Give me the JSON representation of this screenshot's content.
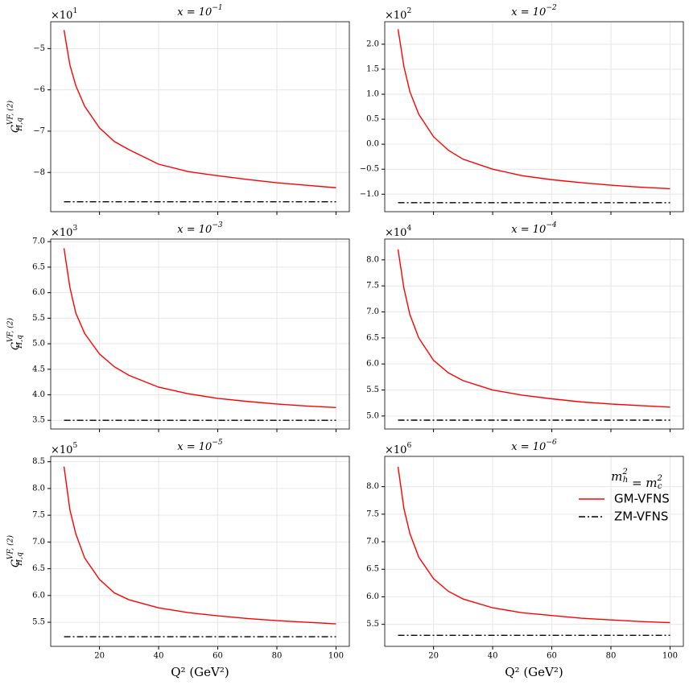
{
  "chart_data": [
    {
      "type": "line",
      "title": {
        "base": "x = 10",
        "exp": "−1"
      },
      "offset": {
        "base": "×10",
        "exp": "1"
      },
      "ylabel": {
        "base": "C",
        "sub": "H,q",
        "sup": "VF, (2)"
      },
      "x": [
        8,
        10,
        12,
        15,
        20,
        25,
        30,
        40,
        50,
        60,
        70,
        80,
        90,
        100
      ],
      "series": [
        {
          "color": "#ff0000",
          "style": "solid",
          "values": [
            -4.55,
            -5.4,
            -5.9,
            -6.4,
            -6.92,
            -7.25,
            -7.45,
            -7.8,
            -7.98,
            -8.08,
            -8.17,
            -8.25,
            -8.31,
            -8.37
          ]
        },
        {
          "color": "#000000",
          "style": "dashdot",
          "values": [
            -8.71,
            -8.71,
            -8.71,
            -8.71,
            -8.71,
            -8.71,
            -8.71,
            -8.71,
            -8.71,
            -8.71,
            -8.71,
            -8.71,
            -8.71,
            -8.71
          ]
        }
      ],
      "xlim": [
        3.5,
        104.5
      ],
      "xticks": [
        20,
        40,
        60,
        80,
        100
      ],
      "ylim": [
        -8.95,
        -4.35
      ],
      "yticks": [
        {
          "value": -8,
          "label": "−8"
        },
        {
          "value": -7,
          "label": "−7"
        },
        {
          "value": -6,
          "label": "−6"
        },
        {
          "value": -5,
          "label": "−5"
        }
      ],
      "grid": true
    },
    {
      "type": "line",
      "title": {
        "base": "x = 10",
        "exp": "−2"
      },
      "offset": {
        "base": "×10",
        "exp": "2"
      },
      "x": [
        8,
        10,
        12,
        15,
        20,
        25,
        30,
        40,
        50,
        60,
        70,
        80,
        90,
        100
      ],
      "series": [
        {
          "color": "#ff0000",
          "style": "solid",
          "values": [
            2.3,
            1.55,
            1.05,
            0.6,
            0.15,
            -0.12,
            -0.3,
            -0.5,
            -0.63,
            -0.71,
            -0.77,
            -0.82,
            -0.86,
            -0.89
          ]
        },
        {
          "color": "#000000",
          "style": "dashdot",
          "values": [
            -1.17,
            -1.17,
            -1.17,
            -1.17,
            -1.17,
            -1.17,
            -1.17,
            -1.17,
            -1.17,
            -1.17,
            -1.17,
            -1.17,
            -1.17,
            -1.17
          ]
        }
      ],
      "xlim": [
        3.5,
        104.5
      ],
      "xticks": [
        20,
        40,
        60,
        80,
        100
      ],
      "ylim": [
        -1.35,
        2.45
      ],
      "yticks": [
        {
          "value": -1,
          "label": "−1.0"
        },
        {
          "value": -0.5,
          "label": "−0.5"
        },
        {
          "value": 0,
          "label": "0.0"
        },
        0.5,
        {
          "value": 1,
          "label": "1.0"
        },
        1.5,
        {
          "value": 2,
          "label": "2.0"
        }
      ],
      "grid": true
    },
    {
      "type": "line",
      "title": {
        "base": "x = 10",
        "exp": "−3"
      },
      "offset": {
        "base": "×10",
        "exp": "3"
      },
      "ylabel": {
        "base": "C",
        "sub": "H,q",
        "sup": "VF, (2)"
      },
      "x": [
        8,
        10,
        12,
        15,
        20,
        25,
        30,
        40,
        50,
        60,
        70,
        80,
        90,
        100
      ],
      "series": [
        {
          "color": "#ff0000",
          "style": "solid",
          "values": [
            6.87,
            6.1,
            5.6,
            5.2,
            4.8,
            4.55,
            4.38,
            4.15,
            4.02,
            3.93,
            3.87,
            3.82,
            3.78,
            3.75
          ]
        },
        {
          "color": "#000000",
          "style": "dashdot",
          "values": [
            3.5,
            3.5,
            3.5,
            3.5,
            3.5,
            3.5,
            3.5,
            3.5,
            3.5,
            3.5,
            3.5,
            3.5,
            3.5,
            3.5
          ]
        }
      ],
      "xlim": [
        3.5,
        104.5
      ],
      "xticks": [
        20,
        40,
        60,
        80,
        100
      ],
      "ylim": [
        3.33,
        7.05
      ],
      "yticks": [
        3.5,
        {
          "value": 4,
          "label": "4.0"
        },
        4.5,
        {
          "value": 5,
          "label": "5.0"
        },
        5.5,
        {
          "value": 6,
          "label": "6.0"
        },
        6.5,
        {
          "value": 7,
          "label": "7.0"
        }
      ],
      "grid": true
    },
    {
      "type": "line",
      "title": {
        "base": "x = 10",
        "exp": "−4"
      },
      "offset": {
        "base": "×10",
        "exp": "4"
      },
      "x": [
        8,
        10,
        12,
        15,
        20,
        25,
        30,
        40,
        50,
        60,
        70,
        80,
        90,
        100
      ],
      "series": [
        {
          "color": "#ff0000",
          "style": "solid",
          "values": [
            8.2,
            7.45,
            6.95,
            6.5,
            6.07,
            5.83,
            5.68,
            5.5,
            5.4,
            5.33,
            5.27,
            5.23,
            5.2,
            5.17
          ]
        },
        {
          "color": "#000000",
          "style": "dashdot",
          "values": [
            4.92,
            4.92,
            4.92,
            4.92,
            4.92,
            4.92,
            4.92,
            4.92,
            4.92,
            4.92,
            4.92,
            4.92,
            4.92,
            4.92
          ]
        }
      ],
      "xlim": [
        3.5,
        104.5
      ],
      "xticks": [
        20,
        40,
        60,
        80,
        100
      ],
      "ylim": [
        4.75,
        8.4
      ],
      "yticks": [
        {
          "value": 5,
          "label": "5.0"
        },
        5.5,
        {
          "value": 6,
          "label": "6.0"
        },
        6.5,
        {
          "value": 7,
          "label": "7.0"
        },
        7.5,
        {
          "value": 8,
          "label": "8.0"
        }
      ],
      "grid": true
    },
    {
      "type": "line",
      "title": {
        "base": "x = 10",
        "exp": "−5"
      },
      "offset": {
        "base": "×10",
        "exp": "5"
      },
      "ylabel": {
        "base": "C",
        "sub": "H,q",
        "sup": "VF, (2)"
      },
      "xlabel": "Q² (GeV²)",
      "x": [
        8,
        10,
        12,
        15,
        20,
        25,
        30,
        40,
        50,
        60,
        70,
        80,
        90,
        100
      ],
      "series": [
        {
          "color": "#ff0000",
          "style": "solid",
          "values": [
            8.41,
            7.6,
            7.15,
            6.7,
            6.3,
            6.05,
            5.92,
            5.77,
            5.68,
            5.62,
            5.57,
            5.53,
            5.5,
            5.47
          ]
        },
        {
          "color": "#000000",
          "style": "dashdot",
          "values": [
            5.23,
            5.23,
            5.23,
            5.23,
            5.23,
            5.23,
            5.23,
            5.23,
            5.23,
            5.23,
            5.23,
            5.23,
            5.23,
            5.23
          ]
        }
      ],
      "xlim": [
        3.5,
        104.5
      ],
      "xticks": [
        20,
        40,
        60,
        80,
        100
      ],
      "ylim": [
        5.05,
        8.6
      ],
      "yticks": [
        5.5,
        {
          "value": 6,
          "label": "6.0"
        },
        6.5,
        {
          "value": 7,
          "label": "7.0"
        },
        7.5,
        {
          "value": 8,
          "label": "8.0"
        },
        8.5
      ],
      "grid": true
    },
    {
      "type": "line",
      "title": {
        "base": "x = 10",
        "exp": "−6"
      },
      "offset": {
        "base": "×10",
        "exp": "6"
      },
      "xlabel": "Q² (GeV²)",
      "x": [
        8,
        10,
        12,
        15,
        20,
        25,
        30,
        40,
        50,
        60,
        70,
        80,
        90,
        100
      ],
      "series": [
        {
          "name": "GM-VFNS",
          "color": "#ff0000",
          "style": "solid",
          "values": [
            8.36,
            7.6,
            7.15,
            6.72,
            6.33,
            6.1,
            5.96,
            5.8,
            5.71,
            5.66,
            5.61,
            5.58,
            5.55,
            5.53
          ]
        },
        {
          "name": "ZM-VFNS",
          "color": "#000000",
          "style": "dashdot",
          "values": [
            5.3,
            5.3,
            5.3,
            5.3,
            5.3,
            5.3,
            5.3,
            5.3,
            5.3,
            5.3,
            5.3,
            5.3,
            5.3,
            5.3
          ]
        }
      ],
      "xlim": [
        3.5,
        104.5
      ],
      "xticks": [
        20,
        40,
        60,
        80,
        100
      ],
      "ylim": [
        5.1,
        8.55
      ],
      "yticks": [
        5.5,
        {
          "value": 6,
          "label": "6.0"
        },
        6.5,
        {
          "value": 7,
          "label": "7.0"
        },
        7.5,
        {
          "value": 8,
          "label": "8.0"
        }
      ],
      "grid": true,
      "legend": "upper right",
      "legend_title": [
        {
          "base": "m",
          "sub": "h",
          "sup": "2"
        },
        {
          "base": " = m",
          "sub": "c",
          "sup": "2"
        }
      ]
    }
  ]
}
